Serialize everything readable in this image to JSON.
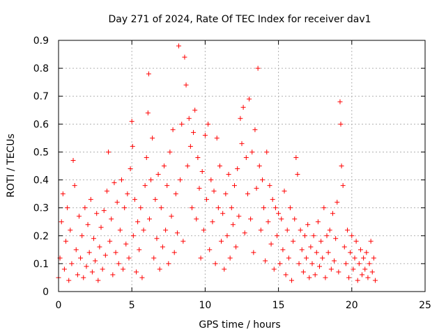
{
  "chart_data": {
    "type": "scatter",
    "title": "Day 271 of 2024, Rate Of TEC Index for receiver dav1",
    "xlabel": "GPS time / hours",
    "ylabel": "ROTI / TECUs",
    "xlim": [
      0,
      25
    ],
    "ylim": [
      0,
      0.9
    ],
    "x_ticks": [
      "0",
      "5",
      "10",
      "15",
      "20",
      "25"
    ],
    "y_ticks": [
      "0",
      "0.1",
      "0.2",
      "0.3",
      "0.4",
      "0.5",
      "0.6",
      "0.7",
      "0.8",
      "0.9"
    ],
    "grid": true,
    "marker": "+",
    "color": "#ff0000",
    "series": [
      {
        "points": [
          [
            0.0,
            0.05
          ],
          [
            0.1,
            0.12
          ],
          [
            0.2,
            0.25
          ],
          [
            0.3,
            0.35
          ],
          [
            0.4,
            0.08
          ],
          [
            0.5,
            0.18
          ],
          [
            0.6,
            0.3
          ],
          [
            0.7,
            0.04
          ],
          [
            0.8,
            0.22
          ],
          [
            0.9,
            0.1
          ],
          [
            1.0,
            0.47
          ],
          [
            1.1,
            0.38
          ],
          [
            1.2,
            0.15
          ],
          [
            1.3,
            0.06
          ],
          [
            1.4,
            0.27
          ],
          [
            1.5,
            0.12
          ],
          [
            1.6,
            0.2
          ],
          [
            1.7,
            0.05
          ],
          [
            1.8,
            0.3
          ],
          [
            1.9,
            0.09
          ],
          [
            2.0,
            0.24
          ],
          [
            2.1,
            0.14
          ],
          [
            2.2,
            0.33
          ],
          [
            2.3,
            0.07
          ],
          [
            2.4,
            0.19
          ],
          [
            2.5,
            0.11
          ],
          [
            2.6,
            0.28
          ],
          [
            2.7,
            0.04
          ],
          [
            2.8,
            0.16
          ],
          [
            2.9,
            0.23
          ],
          [
            3.0,
            0.08
          ],
          [
            3.1,
            0.29
          ],
          [
            3.2,
            0.13
          ],
          [
            3.3,
            0.36
          ],
          [
            3.4,
            0.5
          ],
          [
            3.5,
            0.18
          ],
          [
            3.6,
            0.26
          ],
          [
            3.7,
            0.06
          ],
          [
            3.8,
            0.39
          ],
          [
            3.9,
            0.14
          ],
          [
            4.0,
            0.32
          ],
          [
            4.1,
            0.1
          ],
          [
            4.2,
            0.22
          ],
          [
            4.3,
            0.4
          ],
          [
            4.4,
            0.08
          ],
          [
            4.5,
            0.3
          ],
          [
            4.6,
            0.17
          ],
          [
            4.7,
            0.35
          ],
          [
            4.8,
            0.12
          ],
          [
            4.9,
            0.44
          ],
          [
            5.0,
            0.61
          ],
          [
            5.05,
            0.52
          ],
          [
            5.1,
            0.2
          ],
          [
            5.2,
            0.33
          ],
          [
            5.3,
            0.07
          ],
          [
            5.4,
            0.25
          ],
          [
            5.5,
            0.15
          ],
          [
            5.6,
            0.3
          ],
          [
            5.7,
            0.05
          ],
          [
            5.8,
            0.22
          ],
          [
            5.9,
            0.38
          ],
          [
            6.0,
            0.48
          ],
          [
            6.1,
            0.64
          ],
          [
            6.15,
            0.78
          ],
          [
            6.2,
            0.26
          ],
          [
            6.3,
            0.4
          ],
          [
            6.4,
            0.55
          ],
          [
            6.5,
            0.12
          ],
          [
            6.6,
            0.33
          ],
          [
            6.7,
            0.19
          ],
          [
            6.8,
            0.42
          ],
          [
            6.9,
            0.08
          ],
          [
            7.0,
            0.3
          ],
          [
            7.1,
            0.16
          ],
          [
            7.2,
            0.45
          ],
          [
            7.3,
            0.22
          ],
          [
            7.4,
            0.38
          ],
          [
            7.5,
            0.1
          ],
          [
            7.6,
            0.5
          ],
          [
            7.7,
            0.27
          ],
          [
            7.8,
            0.58
          ],
          [
            7.9,
            0.14
          ],
          [
            8.0,
            0.35
          ],
          [
            8.1,
            0.21
          ],
          [
            8.2,
            0.88
          ],
          [
            8.3,
            0.4
          ],
          [
            8.4,
            0.6
          ],
          [
            8.5,
            0.18
          ],
          [
            8.6,
            0.84
          ],
          [
            8.7,
            0.74
          ],
          [
            8.8,
            0.45
          ],
          [
            8.9,
            0.62
          ],
          [
            9.0,
            0.52
          ],
          [
            9.1,
            0.3
          ],
          [
            9.2,
            0.57
          ],
          [
            9.3,
            0.65
          ],
          [
            9.4,
            0.26
          ],
          [
            9.5,
            0.48
          ],
          [
            9.6,
            0.37
          ],
          [
            9.7,
            0.12
          ],
          [
            9.8,
            0.43
          ],
          [
            9.9,
            0.22
          ],
          [
            10.0,
            0.56
          ],
          [
            10.1,
            0.33
          ],
          [
            10.2,
            0.6
          ],
          [
            10.3,
            0.15
          ],
          [
            10.4,
            0.4
          ],
          [
            10.5,
            0.25
          ],
          [
            10.6,
            0.36
          ],
          [
            10.7,
            0.1
          ],
          [
            10.8,
            0.55
          ],
          [
            10.9,
            0.3
          ],
          [
            11.0,
            0.45
          ],
          [
            11.1,
            0.18
          ],
          [
            11.2,
            0.28
          ],
          [
            11.3,
            0.08
          ],
          [
            11.4,
            0.35
          ],
          [
            11.5,
            0.2
          ],
          [
            11.6,
            0.42
          ],
          [
            11.7,
            0.12
          ],
          [
            11.8,
            0.3
          ],
          [
            11.9,
            0.24
          ],
          [
            12.0,
            0.38
          ],
          [
            12.1,
            0.16
          ],
          [
            12.2,
            0.44
          ],
          [
            12.3,
            0.27
          ],
          [
            12.4,
            0.62
          ],
          [
            12.5,
            0.53
          ],
          [
            12.6,
            0.66
          ],
          [
            12.7,
            0.21
          ],
          [
            12.8,
            0.48
          ],
          [
            12.9,
            0.35
          ],
          [
            13.0,
            0.69
          ],
          [
            13.1,
            0.26
          ],
          [
            13.2,
            0.5
          ],
          [
            13.3,
            0.14
          ],
          [
            13.4,
            0.58
          ],
          [
            13.5,
            0.37
          ],
          [
            13.6,
            0.8
          ],
          [
            13.7,
            0.45
          ],
          [
            13.8,
            0.22
          ],
          [
            13.9,
            0.4
          ],
          [
            14.0,
            0.3
          ],
          [
            14.1,
            0.11
          ],
          [
            14.2,
            0.5
          ],
          [
            14.3,
            0.25
          ],
          [
            14.4,
            0.38
          ],
          [
            14.5,
            0.17
          ],
          [
            14.6,
            0.33
          ],
          [
            14.7,
            0.08
          ],
          [
            14.8,
            0.3
          ],
          [
            14.9,
            0.2
          ],
          [
            15.0,
            0.28
          ],
          [
            15.1,
            0.1
          ],
          [
            15.2,
            0.26
          ],
          [
            15.3,
            0.15
          ],
          [
            15.4,
            0.36
          ],
          [
            15.5,
            0.06
          ],
          [
            15.6,
            0.22
          ],
          [
            15.7,
            0.12
          ],
          [
            15.8,
            0.3
          ],
          [
            15.9,
            0.04
          ],
          [
            16.0,
            0.18
          ],
          [
            16.1,
            0.26
          ],
          [
            16.2,
            0.48
          ],
          [
            16.3,
            0.42
          ],
          [
            16.4,
            0.1
          ],
          [
            16.5,
            0.22
          ],
          [
            16.6,
            0.15
          ],
          [
            16.7,
            0.07
          ],
          [
            16.8,
            0.2
          ],
          [
            16.9,
            0.12
          ],
          [
            17.0,
            0.24
          ],
          [
            17.1,
            0.05
          ],
          [
            17.2,
            0.16
          ],
          [
            17.3,
            0.1
          ],
          [
            17.4,
            0.2
          ],
          [
            17.5,
            0.06
          ],
          [
            17.6,
            0.14
          ],
          [
            17.7,
            0.25
          ],
          [
            17.8,
            0.09
          ],
          [
            17.9,
            0.18
          ],
          [
            18.0,
            0.12
          ],
          [
            18.1,
            0.3
          ],
          [
            18.2,
            0.05
          ],
          [
            18.3,
            0.2
          ],
          [
            18.4,
            0.14
          ],
          [
            18.5,
            0.22
          ],
          [
            18.6,
            0.08
          ],
          [
            18.7,
            0.28
          ],
          [
            18.8,
            0.11
          ],
          [
            18.9,
            0.19
          ],
          [
            19.0,
            0.32
          ],
          [
            19.1,
            0.07
          ],
          [
            19.2,
            0.68
          ],
          [
            19.25,
            0.6
          ],
          [
            19.3,
            0.45
          ],
          [
            19.4,
            0.38
          ],
          [
            19.5,
            0.16
          ],
          [
            19.6,
            0.1
          ],
          [
            19.7,
            0.22
          ],
          [
            19.8,
            0.05
          ],
          [
            19.9,
            0.14
          ],
          [
            20.0,
            0.2
          ],
          [
            20.1,
            0.08
          ],
          [
            20.2,
            0.12
          ],
          [
            20.3,
            0.18
          ],
          [
            20.4,
            0.04
          ],
          [
            20.5,
            0.1
          ],
          [
            20.6,
            0.15
          ],
          [
            20.7,
            0.06
          ],
          [
            20.8,
            0.12
          ],
          [
            20.9,
            0.08
          ],
          [
            21.0,
            0.14
          ],
          [
            21.1,
            0.05
          ],
          [
            21.2,
            0.1
          ],
          [
            21.3,
            0.18
          ],
          [
            21.4,
            0.07
          ],
          [
            21.5,
            0.12
          ],
          [
            21.6,
            0.04
          ]
        ]
      }
    ]
  }
}
